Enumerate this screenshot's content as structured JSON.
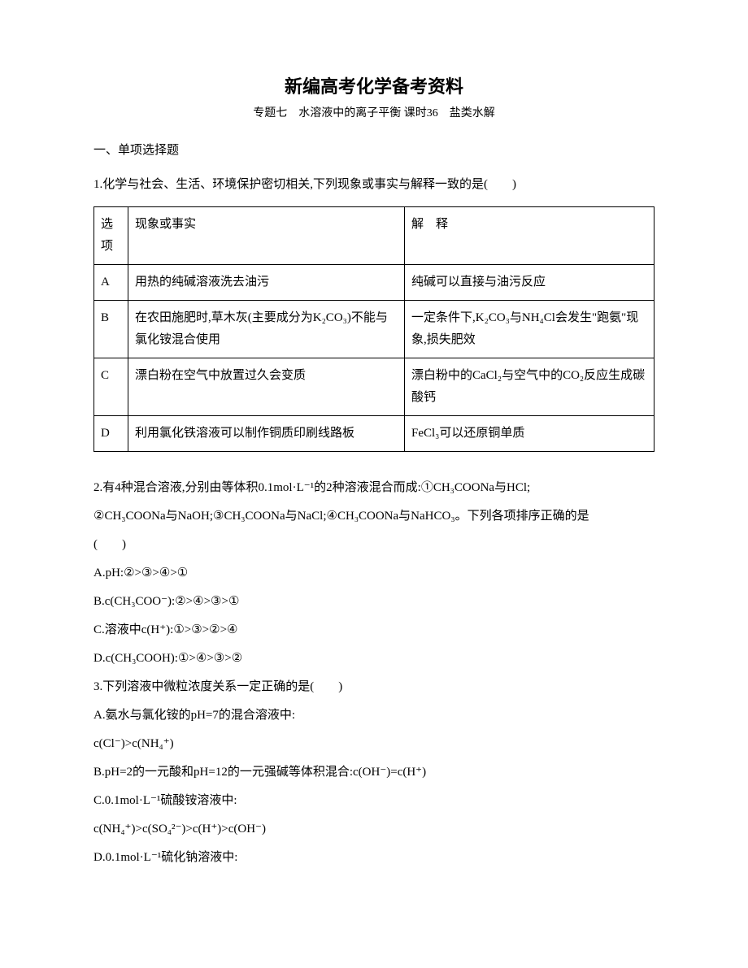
{
  "title": "新编高考化学备考资料",
  "subtitle": "专题七　水溶液中的离子平衡  课时36　盐类水解",
  "section1": "一、单项选择题",
  "q1": {
    "intro": "1.化学与社会、生活、环境保护密切相关,下列现象或事实与解释一致的是(　　)",
    "header_opt": "选项",
    "header_fact": "现象或事实",
    "header_expl": "解　释",
    "rows": [
      {
        "opt": "A",
        "fact": "用热的纯碱溶液洗去油污",
        "expl": "纯碱可以直接与油污反应"
      },
      {
        "opt": "B",
        "fact": "在农田施肥时,草木灰(主要成分为K₂CO₃)不能与氯化铵混合使用",
        "expl": "一定条件下,K₂CO₃与NH₄Cl会发生\"跑氨\"现象,损失肥效"
      },
      {
        "opt": "C",
        "fact": "漂白粉在空气中放置过久会变质",
        "expl": "漂白粉中的CaCl₂与空气中的CO₂反应生成碳酸钙"
      },
      {
        "opt": "D",
        "fact": "利用氯化铁溶液可以制作铜质印刷线路板",
        "expl": "FeCl₃可以还原铜单质"
      }
    ]
  },
  "q2": {
    "line1": "2.有4种混合溶液,分别由等体积0.1mol·L⁻¹的2种溶液混合而成:①CH₃COONa与HCl;",
    "line2": "②CH₃COONa与NaOH;③CH₃COONa与NaCl;④CH₃COONa与NaHCO₃。下列各项排序正确的是",
    "line3": "(　　)",
    "optA": "A.pH:②>③>④>①",
    "optB": "B.c(CH₃COO⁻):②>④>③>①",
    "optC": "C.溶液中c(H⁺):①>③>②>④",
    "optD": "D.c(CH₃COOH):①>④>③>②"
  },
  "q3": {
    "intro": "3.下列溶液中微粒浓度关系一定正确的是(　　)",
    "optA": "A.氨水与氯化铵的pH=7的混合溶液中:",
    "optA_formula_pre": "c(Cl⁻)>c(N",
    "optA_formula_nh4": "H₄⁺",
    "optA_formula_post": ")",
    "optB": "B.pH=2的一元酸和pH=12的一元强碱等体积混合:c(OH⁻)=c(H⁺)",
    "optC": "C.0.1mol·L⁻¹硫酸铵溶液中:",
    "optC_formula_pre": "c(N",
    "optC_formula_nh4": "H₄⁺",
    "optC_formula_mid1": ")>c(S",
    "optC_formula_so4": "O₄²⁻",
    "optC_formula_mid2": ")>c(H⁺)>c(OH⁻)",
    "optD": "D.0.1mol·L⁻¹硫化钠溶液中:"
  }
}
